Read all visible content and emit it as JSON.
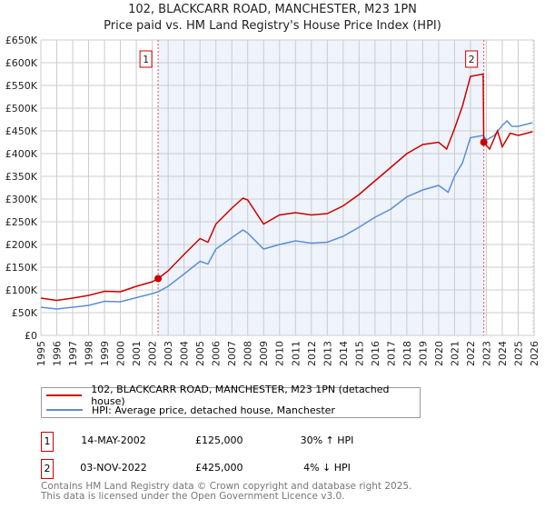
{
  "chart_data": {
    "type": "line",
    "title": "102, BLACKCARR ROAD, MANCHESTER, M23 1PN",
    "subtitle": "Price paid vs. HM Land Registry's House Price Index (HPI)",
    "xlim": [
      1995,
      2026
    ],
    "ylim": [
      0,
      650000
    ],
    "grid": true,
    "y_ticks": [
      "£0",
      "£50K",
      "£100K",
      "£150K",
      "£200K",
      "£250K",
      "£300K",
      "£350K",
      "£400K",
      "£450K",
      "£500K",
      "£550K",
      "£600K",
      "£650K"
    ],
    "x_ticks": [
      "1995",
      "1996",
      "1997",
      "1998",
      "1999",
      "2000",
      "2001",
      "2002",
      "2003",
      "2004",
      "2005",
      "2006",
      "2007",
      "2008",
      "2009",
      "2010",
      "2011",
      "2012",
      "2013",
      "2014",
      "2015",
      "2016",
      "2017",
      "2018",
      "2019",
      "2020",
      "2021",
      "2022",
      "2023",
      "2024",
      "2025",
      "2026"
    ],
    "series": [
      {
        "name": "102, BLACKCARR ROAD, MANCHESTER, M23 1PN (detached house)",
        "color": "#cc0000",
        "x": [
          1995,
          1996,
          1997,
          1998,
          1999,
          2000,
          2001,
          2002,
          2002.37,
          2003,
          2004,
          2005,
          2005.5,
          2006,
          2007,
          2007.7,
          2008,
          2009,
          2010,
          2011,
          2012,
          2013,
          2014,
          2015,
          2016,
          2017,
          2018,
          2019,
          2020,
          2020.5,
          2021,
          2021.5,
          2022,
          2022.8,
          2022.84,
          2023.2,
          2023.7,
          2024,
          2024.5,
          2025,
          2025.9
        ],
        "y": [
          82000,
          77000,
          82000,
          88000,
          97000,
          96000,
          108000,
          118000,
          125000,
          142000,
          178000,
          213000,
          205000,
          245000,
          280000,
          302000,
          298000,
          245000,
          265000,
          270000,
          265000,
          268000,
          285000,
          310000,
          340000,
          370000,
          400000,
          420000,
          425000,
          410000,
          455000,
          505000,
          570000,
          575000,
          425000,
          410000,
          450000,
          415000,
          445000,
          440000,
          448000
        ]
      },
      {
        "name": "HPI: Average price, detached house, Manchester",
        "color": "#5b8fd4",
        "x": [
          1995,
          1996,
          1997,
          1998,
          1999,
          2000,
          2001,
          2002,
          2002.37,
          2003,
          2004,
          2005,
          2005.5,
          2006,
          2007,
          2007.7,
          2008,
          2009,
          2010,
          2011,
          2012,
          2013,
          2014,
          2015,
          2016,
          2017,
          2018,
          2019,
          2020,
          2020.6,
          2021,
          2021.5,
          2022,
          2022.8,
          2023,
          2023.5,
          2024,
          2024.3,
          2024.6,
          2025,
          2025.9
        ],
        "y": [
          62000,
          58000,
          62000,
          66000,
          75000,
          74000,
          83000,
          92000,
          96000,
          108000,
          135000,
          163000,
          157000,
          190000,
          215000,
          232000,
          225000,
          190000,
          200000,
          208000,
          203000,
          205000,
          218000,
          238000,
          260000,
          278000,
          305000,
          320000,
          330000,
          315000,
          350000,
          380000,
          435000,
          440000,
          430000,
          440000,
          462000,
          472000,
          460000,
          460000,
          468000
        ]
      }
    ],
    "sales": [
      {
        "label": "1",
        "x": 2002.37,
        "price": 125000,
        "date": "14-MAY-2002",
        "price_text": "£125,000",
        "hpi_text": "30% ↑ HPI"
      },
      {
        "label": "2",
        "x": 2022.84,
        "price": 425000,
        "date": "03-NOV-2022",
        "price_text": "£425,000",
        "hpi_text": "4% ↓ HPI"
      }
    ],
    "shade_color": "#eef3fc"
  },
  "legend": {
    "red_label": "102, BLACKCARR ROAD, MANCHESTER, M23 1PN (detached house)",
    "blue_label": "HPI: Average price, detached house, Manchester"
  },
  "footer": {
    "line1": "Contains HM Land Registry data © Crown copyright and database right 2025.",
    "line2": "This data is licensed under the Open Government Licence v3.0."
  }
}
